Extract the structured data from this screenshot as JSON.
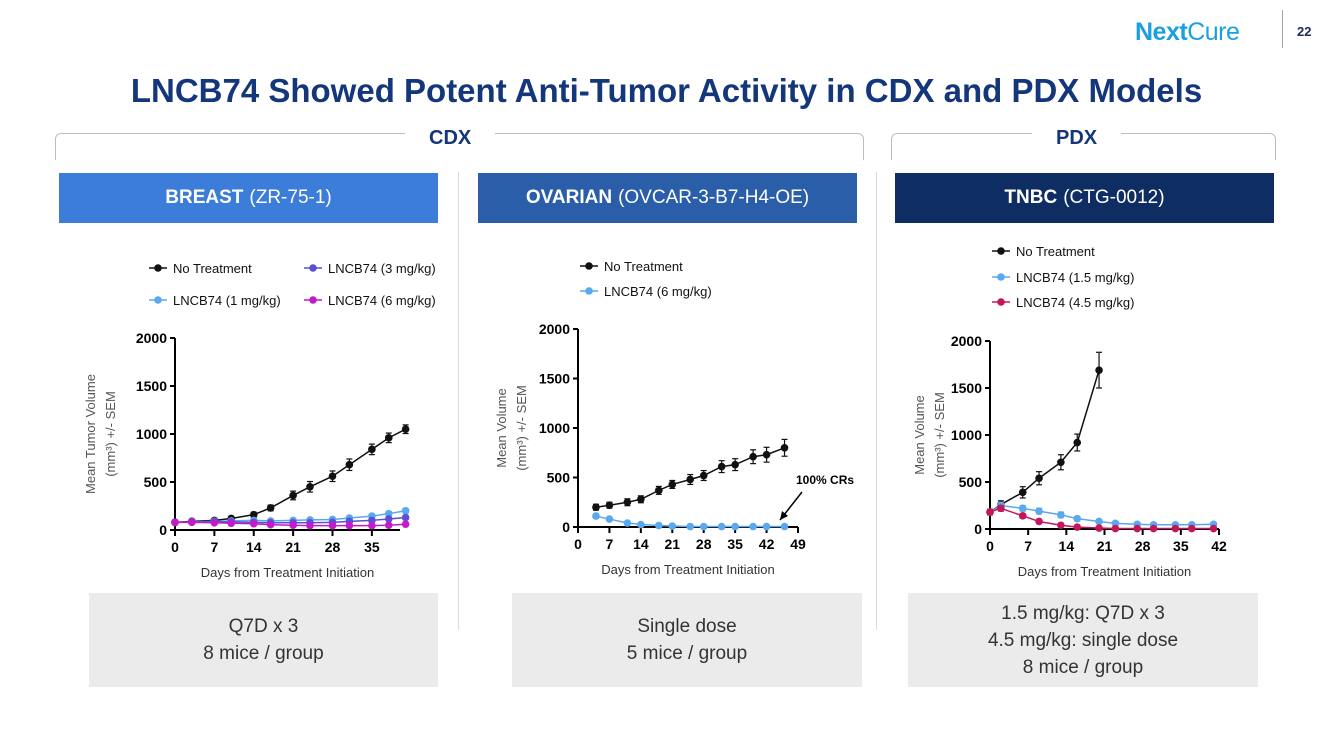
{
  "header": {
    "logo_part1": "Next",
    "logo_part2": "Cure",
    "page_number": "22",
    "title": "LNCB74 Showed Potent Anti-Tumor Activity in CDX and PDX Models",
    "group_cdx": "CDX",
    "group_pdx": "PDX"
  },
  "colors": {
    "title": "#14367a",
    "banner1": "#3b7dd8",
    "banner2": "#2a5ea8",
    "banner3": "#0e2d63",
    "logo": "#1a9fe0",
    "no_treatment": "#111111",
    "lightblue": "#5aa8ee",
    "purple_blue": "#5b4fd6",
    "magenta": "#c21bc9",
    "crimson": "#c2185b"
  },
  "panels": [
    {
      "banner_bold": "BREAST",
      "banner_rest": "(ZR-75-1)",
      "box_lines": [
        "Q7D x 3",
        "8 mice / group"
      ]
    },
    {
      "banner_bold": "OVARIAN",
      "banner_rest": "(OVCAR-3-B7-H4-OE)",
      "box_lines": [
        "Single dose",
        "5 mice / group"
      ]
    },
    {
      "banner_bold": "TNBC",
      "banner_rest": "(CTG-0012)",
      "box_lines": [
        "1.5 mg/kg: Q7D x 3",
        "4.5 mg/kg: single dose",
        "8 mice / group"
      ]
    }
  ],
  "chart_data": [
    {
      "type": "line",
      "xlabel": "Days from Treatment Initiation",
      "ylabel_line1": "Mean Tumor Volume",
      "ylabel_line2": "(mm³) +/- SEM",
      "xlim": [
        0,
        40
      ],
      "ylim": [
        0,
        2000
      ],
      "xticks": [
        0,
        7,
        14,
        21,
        28,
        35
      ],
      "yticks": [
        0,
        500,
        1000,
        1500,
        2000
      ],
      "legend": "top, two columns",
      "series": [
        {
          "name": "No Treatment",
          "color": "#111111",
          "x": [
            0,
            3,
            7,
            10,
            14,
            17,
            21,
            24,
            28,
            31,
            35,
            38,
            41
          ],
          "y": [
            80,
            90,
            100,
            120,
            160,
            230,
            360,
            450,
            560,
            680,
            840,
            960,
            1050
          ],
          "err": [
            25,
            20,
            20,
            20,
            25,
            30,
            45,
            55,
            55,
            60,
            55,
            50,
            45
          ]
        },
        {
          "name": "LNCB74 (1 mg/kg)",
          "color": "#5aa8ee",
          "x": [
            0,
            3,
            7,
            10,
            14,
            17,
            21,
            24,
            28,
            31,
            35,
            38,
            41
          ],
          "y": [
            80,
            85,
            90,
            95,
            100,
            95,
            100,
            105,
            110,
            125,
            145,
            170,
            200
          ],
          "err": [
            15,
            15,
            15,
            15,
            15,
            15,
            15,
            15,
            15,
            15,
            20,
            20,
            25
          ]
        },
        {
          "name": "LNCB74 (3 mg/kg)",
          "color": "#5b4fd6",
          "x": [
            0,
            3,
            7,
            10,
            14,
            17,
            21,
            24,
            28,
            31,
            35,
            38,
            41
          ],
          "y": [
            80,
            85,
            85,
            85,
            80,
            75,
            75,
            75,
            80,
            90,
            100,
            115,
            130
          ],
          "err": [
            15,
            15,
            15,
            15,
            15,
            15,
            15,
            15,
            15,
            15,
            15,
            15,
            20
          ]
        },
        {
          "name": "LNCB74 (6 mg/kg)",
          "color": "#c21bc9",
          "x": [
            0,
            3,
            7,
            10,
            14,
            17,
            21,
            24,
            28,
            31,
            35,
            38,
            41
          ],
          "y": [
            80,
            80,
            75,
            70,
            65,
            55,
            50,
            45,
            45,
            45,
            45,
            50,
            60
          ],
          "err": [
            15,
            15,
            15,
            15,
            15,
            12,
            12,
            12,
            12,
            12,
            12,
            12,
            15
          ]
        }
      ]
    },
    {
      "type": "line",
      "xlabel": "Days from Treatment Initiation",
      "ylabel_line1": "Mean Volume",
      "ylabel_line2": "(mm³) +/- SEM",
      "xlim": [
        0,
        49
      ],
      "ylim": [
        0,
        2000
      ],
      "xticks": [
        0,
        7,
        14,
        21,
        28,
        35,
        42,
        49
      ],
      "yticks": [
        0,
        500,
        1000,
        1500,
        2000
      ],
      "legend": "top",
      "annotation": "100% CRs",
      "series": [
        {
          "name": "No Treatment",
          "color": "#111111",
          "x": [
            4,
            7,
            11,
            14,
            18,
            21,
            25,
            28,
            32,
            35,
            39,
            42,
            46
          ],
          "y": [
            200,
            220,
            250,
            280,
            370,
            430,
            480,
            520,
            610,
            630,
            710,
            730,
            800
          ],
          "err": [
            30,
            30,
            35,
            35,
            40,
            40,
            50,
            50,
            60,
            60,
            70,
            75,
            85
          ]
        },
        {
          "name": "LNCB74 (6 mg/kg)",
          "color": "#5aa8ee",
          "x": [
            4,
            7,
            11,
            14,
            18,
            21,
            25,
            28,
            32,
            35,
            39,
            42,
            46
          ],
          "y": [
            110,
            80,
            40,
            25,
            15,
            10,
            5,
            5,
            5,
            5,
            5,
            5,
            5
          ],
          "err": [
            20,
            15,
            10,
            8,
            5,
            5,
            3,
            3,
            3,
            3,
            3,
            3,
            3
          ]
        }
      ]
    },
    {
      "type": "line",
      "xlabel": "Days from Treatment Initiation",
      "ylabel_line1": "Mean Volume",
      "ylabel_line2": "(mm³) +/- SEM",
      "xlim": [
        0,
        42
      ],
      "ylim": [
        0,
        2000
      ],
      "xticks": [
        0,
        7,
        14,
        21,
        28,
        35,
        42
      ],
      "yticks": [
        0,
        500,
        1000,
        1500,
        2000
      ],
      "legend": "top",
      "series": [
        {
          "name": "No Treatment",
          "color": "#111111",
          "x": [
            0,
            2,
            6,
            9,
            13,
            16,
            20
          ],
          "y": [
            180,
            260,
            390,
            540,
            710,
            920,
            1690
          ],
          "err": [
            30,
            40,
            60,
            70,
            80,
            90,
            190
          ]
        },
        {
          "name": "LNCB74 (1.5 mg/kg)",
          "color": "#5aa8ee",
          "x": [
            0,
            2,
            6,
            9,
            13,
            16,
            20,
            23,
            27,
            30,
            34,
            37,
            41
          ],
          "y": [
            180,
            250,
            220,
            190,
            150,
            110,
            80,
            60,
            50,
            45,
            45,
            45,
            50
          ],
          "err": [
            30,
            35,
            30,
            30,
            30,
            25,
            20,
            15,
            15,
            15,
            15,
            15,
            15
          ]
        },
        {
          "name": "LNCB74 (4.5 mg/kg)",
          "color": "#c2185b",
          "x": [
            0,
            2,
            6,
            9,
            13,
            16,
            20,
            23,
            27,
            30,
            34,
            37,
            41
          ],
          "y": [
            180,
            220,
            140,
            80,
            40,
            20,
            10,
            5,
            5,
            5,
            5,
            5,
            5
          ],
          "err": [
            30,
            30,
            25,
            20,
            10,
            8,
            5,
            3,
            3,
            3,
            3,
            3,
            3
          ]
        }
      ]
    }
  ]
}
